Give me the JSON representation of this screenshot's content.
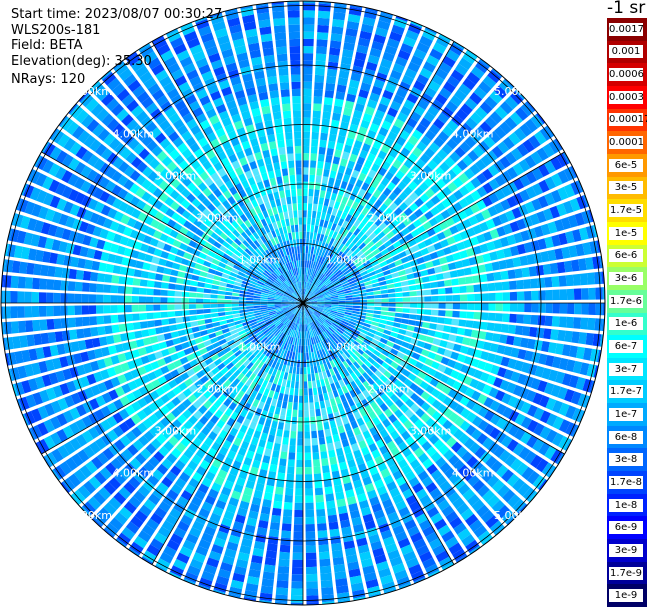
{
  "info": {
    "start_time": "Start time: 2023/08/07 00:30:27",
    "instrument": "WLS200s-181",
    "field": "Field: BETA",
    "elevation": "Elevation(deg): 35.30",
    "nrays": "NRays: 120"
  },
  "colorbar": {
    "units": "-1 sr",
    "segments": [
      {
        "label": "0.0017",
        "color": "#8b0000"
      },
      {
        "label": "0.001",
        "color": "#b00000"
      },
      {
        "label": "0.0006",
        "color": "#d40000"
      },
      {
        "label": "0.0003",
        "color": "#ff0000"
      },
      {
        "label": "0.00017",
        "color": "#ff3300"
      },
      {
        "label": "0.0001",
        "color": "#ff6600"
      },
      {
        "label": "6e-5",
        "color": "#ff9900"
      },
      {
        "label": "3e-5",
        "color": "#ffbb00"
      },
      {
        "label": "1.7e-5",
        "color": "#ffdd00"
      },
      {
        "label": "1e-5",
        "color": "#ffff00"
      },
      {
        "label": "6e-6",
        "color": "#ccff33"
      },
      {
        "label": "3e-6",
        "color": "#99ff66"
      },
      {
        "label": "1.7e-6",
        "color": "#66ff99"
      },
      {
        "label": "1e-6",
        "color": "#33ffcc"
      },
      {
        "label": "6e-7",
        "color": "#00ffff"
      },
      {
        "label": "3e-7",
        "color": "#00e5ff"
      },
      {
        "label": "1.7e-7",
        "color": "#00ccff"
      },
      {
        "label": "1e-7",
        "color": "#00aaff"
      },
      {
        "label": "6e-8",
        "color": "#0088ff"
      },
      {
        "label": "3e-8",
        "color": "#0066ff"
      },
      {
        "label": "1.7e-8",
        "color": "#0044ff"
      },
      {
        "label": "1e-8",
        "color": "#0022ff"
      },
      {
        "label": "6e-9",
        "color": "#0000ff"
      },
      {
        "label": "3e-9",
        "color": "#0000cc"
      },
      {
        "label": "1.7e-9",
        "color": "#000099"
      },
      {
        "label": "1e-9",
        "color": "#000066"
      }
    ]
  },
  "chart_data": {
    "type": "heatmap",
    "projection": "polar PPI (plan position indicator)",
    "field": "BETA",
    "n_rays": 120,
    "elevation_deg": 35.3,
    "range_rings_km": [
      1,
      2,
      3,
      4,
      5
    ],
    "ring_labels": [
      "1.00km",
      "2.00km",
      "3.00km",
      "4.00km",
      "5.00km"
    ],
    "max_range_km": 5.0,
    "azimuth_spokes_deg": [
      0,
      30,
      60,
      90,
      120,
      150,
      180,
      210,
      240,
      270,
      300,
      330
    ],
    "label_azimuths_deg": [
      45,
      135,
      225,
      315
    ],
    "color_scale": "log",
    "value_range": [
      1e-09,
      0.0017
    ],
    "range_bands": [
      {
        "from_km": 0.0,
        "to_km": 1.0,
        "typical_value": "1e-7 to 6e-8"
      },
      {
        "from_km": 1.0,
        "to_km": 2.0,
        "typical_value": "6e-7 to 3e-7"
      },
      {
        "from_km": 2.0,
        "to_km": 3.0,
        "typical_value": "3e-7 to 1.7e-7"
      },
      {
        "from_km": 3.0,
        "to_km": 4.0,
        "typical_value": "1e-7 to 6e-8"
      },
      {
        "from_km": 4.0,
        "to_km": 5.0,
        "typical_value": "6e-8 to 1.7e-8"
      }
    ]
  }
}
